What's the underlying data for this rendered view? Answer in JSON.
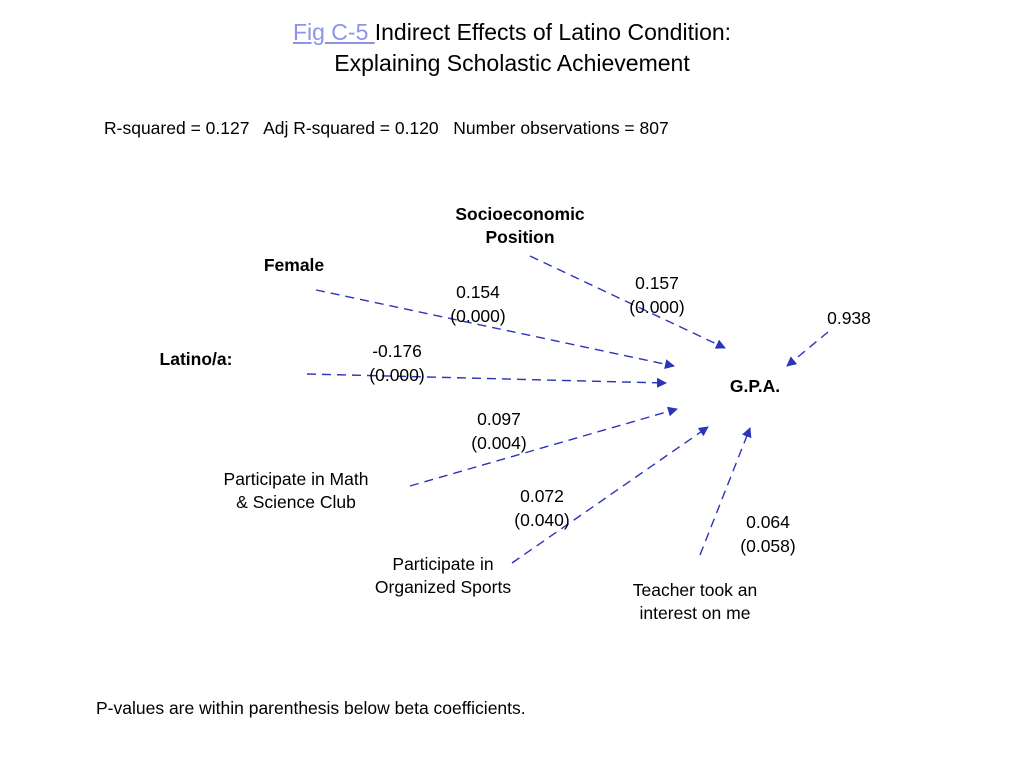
{
  "title": {
    "link_text": "Fig C-5 ",
    "line1_rest": "Indirect Effects of Latino Condition:",
    "line2": "Explaining Scholastic Achievement",
    "link_color": "#8c94e8"
  },
  "stats": "R-squared = 0.127   Adj R-squared = 0.120   Number observations = 807",
  "nodes": {
    "ses_line1": "Socioeconomic",
    "ses_line2": "Position",
    "female": "Female",
    "latino": "Latino/a:",
    "gpa": "G.P.A.",
    "math_line1": "Participate in Math",
    "math_line2": "& Science Club",
    "sports_line1": "Participate in",
    "sports_line2": "Organized Sports",
    "teacher_line1": "Teacher took an",
    "teacher_line2": "interest on me"
  },
  "paths": {
    "female": {
      "beta": "0.154",
      "p": "(0.000)"
    },
    "ses": {
      "beta": "0.157",
      "p": "(0.000)"
    },
    "residual": {
      "beta": "0.938"
    },
    "latino": {
      "beta": "-0.176",
      "p": "(0.000)"
    },
    "math": {
      "beta": "0.097",
      "p": "(0.004)"
    },
    "sports": {
      "beta": "0.072",
      "p": "(0.040)"
    },
    "teacher": {
      "beta": "0.064",
      "p": "(0.058)"
    }
  },
  "arrow_color": "#2b35b8",
  "footnote": "P-values are within parenthesis below beta coefficients."
}
